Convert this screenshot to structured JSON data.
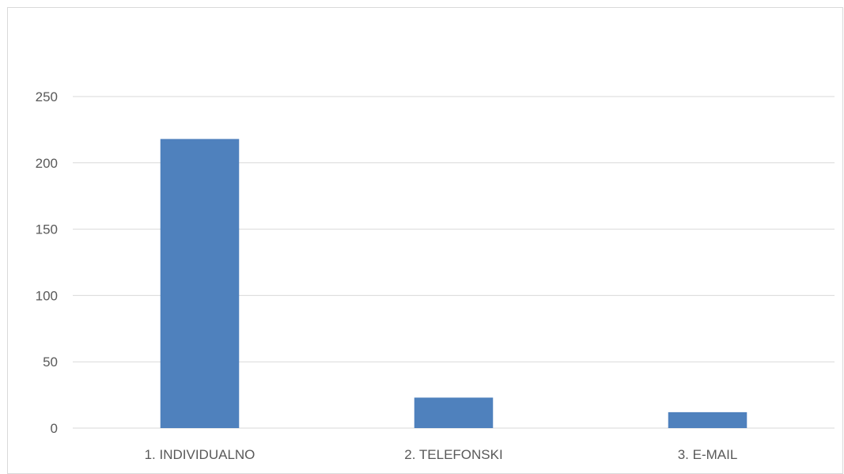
{
  "chart_data": {
    "type": "bar",
    "categories": [
      "1. INDIVIDUALNO",
      "2. TELEFONSKI",
      "3. E-MAIL"
    ],
    "values": [
      218,
      23,
      12
    ],
    "ylim": [
      0,
      250
    ],
    "yticks": [
      0,
      50,
      100,
      150,
      200,
      250
    ],
    "grid": true,
    "legend": "none",
    "colors": {
      "bar": "#4f81bd",
      "grid": "#d9d9d9",
      "text": "#595959"
    }
  }
}
